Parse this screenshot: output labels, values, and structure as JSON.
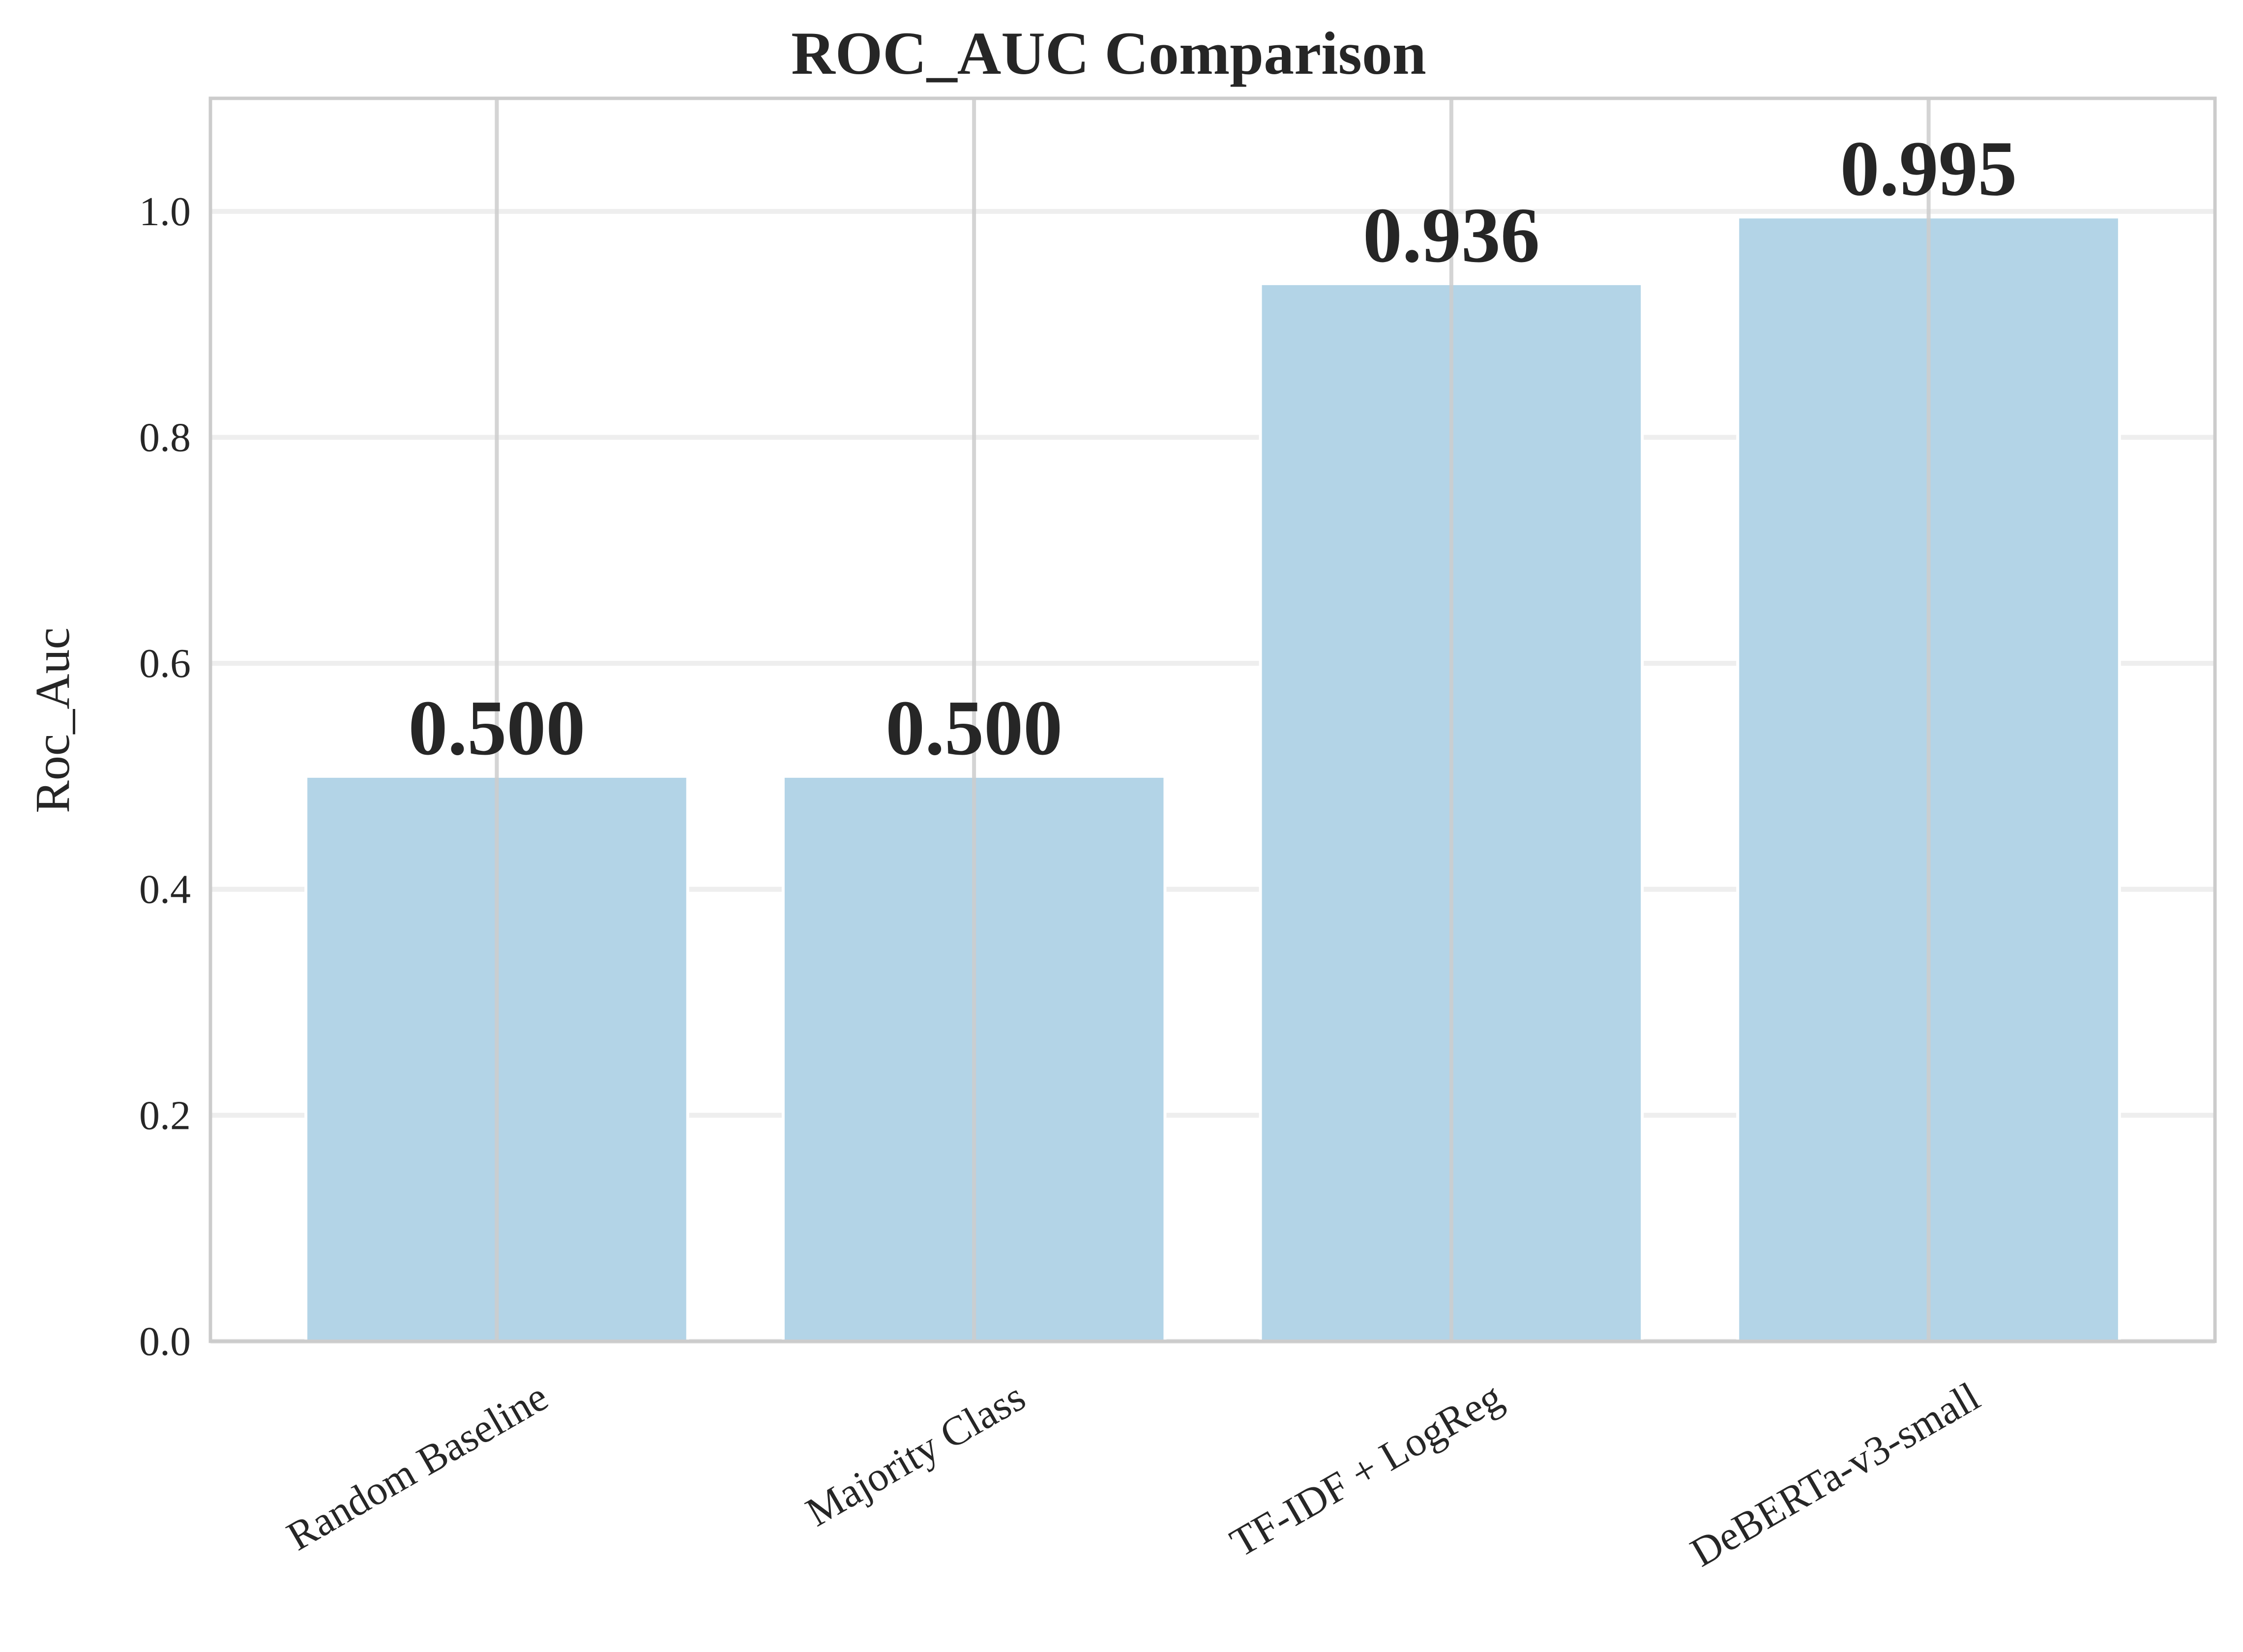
{
  "chart_data": {
    "type": "bar",
    "title": "ROC_AUC Comparison",
    "xlabel": "",
    "ylabel": "Roc_Auc",
    "categories": [
      "Random Baseline",
      "Majority Class",
      "TF-IDF + LogReg",
      "DeBERTa-v3-small"
    ],
    "values": [
      0.5,
      0.5,
      0.936,
      0.995
    ],
    "data_labels": [
      "0.500",
      "0.500",
      "0.936",
      "0.995"
    ],
    "ylim": [
      0,
      1.1
    ],
    "yticks": [
      {
        "value": 0.0,
        "label": "0.0"
      },
      {
        "value": 0.2,
        "label": "0.2"
      },
      {
        "value": 0.4,
        "label": "0.4"
      },
      {
        "value": 0.6,
        "label": "0.6"
      },
      {
        "value": 0.8,
        "label": "0.8"
      },
      {
        "value": 1.0,
        "label": "1.0"
      }
    ],
    "grid": true,
    "legend": "none",
    "colors": {
      "bar_fill": "#b3d4e7",
      "bar_edge": "#ffffff",
      "grid": "#eeeeee",
      "vertical_grid": "#cccccc",
      "spine": "#cccccc",
      "text": "#262626"
    }
  }
}
